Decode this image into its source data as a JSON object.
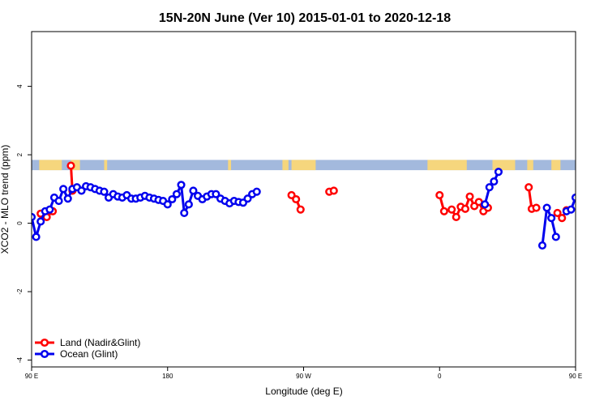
{
  "chart_data": {
    "type": "line",
    "title": "15N-20N June (Ver 10)   2015-01-01 to 2020-12-18",
    "xlabel": "Longitude (deg E)",
    "ylabel": "XCO2 - MLO trend (ppm)",
    "xlim": [
      90,
      450
    ],
    "ylim": [
      -4.2,
      5.6
    ],
    "x_ticks": [
      {
        "value": 90,
        "label": "90 E"
      },
      {
        "value": 180,
        "label": "180"
      },
      {
        "value": 270,
        "label": "90 W"
      },
      {
        "value": 360,
        "label": "0"
      },
      {
        "value": 450,
        "label": "90 E"
      },
      {
        "value": 540,
        "label": "180"
      }
    ],
    "y_ticks": [
      {
        "value": -4,
        "label": "-4"
      },
      {
        "value": -2,
        "label": "-2"
      },
      {
        "value": 0,
        "label": "0"
      },
      {
        "value": 2,
        "label": "2"
      },
      {
        "value": 4,
        "label": "4"
      }
    ],
    "legend_position": "bottom-left",
    "land_band": {
      "y_range": [
        1.55,
        1.85
      ],
      "ocean_color": "#a3b9dd",
      "land_color": "#f6d67d",
      "land_segments": [
        [
          95,
          110
        ],
        [
          116,
          122
        ],
        [
          138,
          140
        ],
        [
          220,
          222
        ],
        [
          256,
          260
        ],
        [
          262,
          278
        ],
        [
          352,
          378
        ],
        [
          395,
          410
        ],
        [
          418,
          422
        ],
        [
          434,
          440
        ],
        [
          470,
          475
        ]
      ]
    },
    "series": [
      {
        "name": "Land (Nadir&Glint)",
        "color": "#ff0000",
        "segments": [
          [
            [
              96,
              0.28
            ],
            [
              100,
              0.18
            ],
            [
              104,
              0.35
            ]
          ],
          [
            [
              116,
              1.68
            ],
            [
              117,
              0.95
            ]
          ],
          [
            [
              262,
              0.82
            ],
            [
              265,
              0.7
            ],
            [
              268,
              0.4
            ]
          ],
          [
            [
              287,
              0.92
            ],
            [
              290,
              0.95
            ]
          ],
          [
            [
              360,
              0.82
            ],
            [
              363,
              0.35
            ]
          ],
          [
            [
              368,
              0.4
            ],
            [
              371,
              0.18
            ],
            [
              374,
              0.48
            ],
            [
              377,
              0.42
            ],
            [
              380,
              0.78
            ],
            [
              383,
              0.5
            ],
            [
              386,
              0.62
            ],
            [
              389,
              0.35
            ],
            [
              392,
              0.45
            ]
          ],
          [
            [
              419,
              1.05
            ],
            [
              421,
              0.42
            ],
            [
              424,
              0.45
            ]
          ],
          [
            [
              438,
              0.3
            ],
            [
              441,
              0.15
            ],
            [
              444,
              0.38
            ]
          ],
          [
            [
              456,
              1.68
            ],
            [
              457,
              0.95
            ]
          ]
        ]
      },
      {
        "name": "Ocean (Glint)",
        "color": "#0000ee",
        "segments": [
          [
            [
              90,
              0.18
            ],
            [
              93,
              -0.4
            ],
            [
              96,
              0.05
            ],
            [
              99,
              0.35
            ],
            [
              102,
              0.4
            ],
            [
              105,
              0.75
            ],
            [
              108,
              0.65
            ],
            [
              111,
              1.0
            ],
            [
              114,
              0.72
            ],
            [
              117,
              1.0
            ],
            [
              120,
              1.05
            ],
            [
              123,
              0.95
            ],
            [
              126,
              1.08
            ],
            [
              129,
              1.05
            ],
            [
              132,
              1.0
            ],
            [
              135,
              0.95
            ],
            [
              138,
              0.92
            ],
            [
              141,
              0.75
            ],
            [
              144,
              0.85
            ],
            [
              147,
              0.78
            ],
            [
              150,
              0.75
            ],
            [
              153,
              0.82
            ],
            [
              156,
              0.72
            ],
            [
              159,
              0.72
            ],
            [
              162,
              0.75
            ],
            [
              165,
              0.8
            ],
            [
              168,
              0.75
            ],
            [
              171,
              0.72
            ],
            [
              174,
              0.68
            ],
            [
              177,
              0.65
            ],
            [
              180,
              0.55
            ],
            [
              183,
              0.7
            ],
            [
              186,
              0.85
            ],
            [
              189,
              1.12
            ],
            [
              191,
              0.3
            ],
            [
              194,
              0.55
            ],
            [
              197,
              0.95
            ],
            [
              200,
              0.8
            ],
            [
              203,
              0.7
            ],
            [
              206,
              0.78
            ],
            [
              209,
              0.85
            ],
            [
              212,
              0.85
            ],
            [
              215,
              0.72
            ],
            [
              218,
              0.65
            ],
            [
              221,
              0.58
            ],
            [
              224,
              0.65
            ],
            [
              227,
              0.62
            ],
            [
              230,
              0.6
            ],
            [
              233,
              0.72
            ],
            [
              236,
              0.85
            ],
            [
              239,
              0.92
            ]
          ],
          [
            [
              390,
              0.55
            ],
            [
              393,
              1.05
            ],
            [
              396,
              1.22
            ],
            [
              399,
              1.5
            ]
          ],
          [
            [
              428,
              -0.65
            ],
            [
              431,
              0.45
            ],
            [
              434,
              0.15
            ],
            [
              437,
              -0.4
            ]
          ],
          [
            [
              444,
              0.35
            ],
            [
              447,
              0.4
            ],
            [
              450,
              0.75
            ],
            [
              453,
              0.65
            ],
            [
              456,
              1.0
            ],
            [
              459,
              0.72
            ],
            [
              462,
              1.0
            ],
            [
              465,
              1.05
            ],
            [
              468,
              0.95
            ],
            [
              471,
              1.08
            ],
            [
              474,
              1.05
            ],
            [
              477,
              1.0
            ],
            [
              480,
              0.95
            ],
            [
              483,
              0.92
            ],
            [
              486,
              0.75
            ]
          ]
        ]
      }
    ]
  }
}
